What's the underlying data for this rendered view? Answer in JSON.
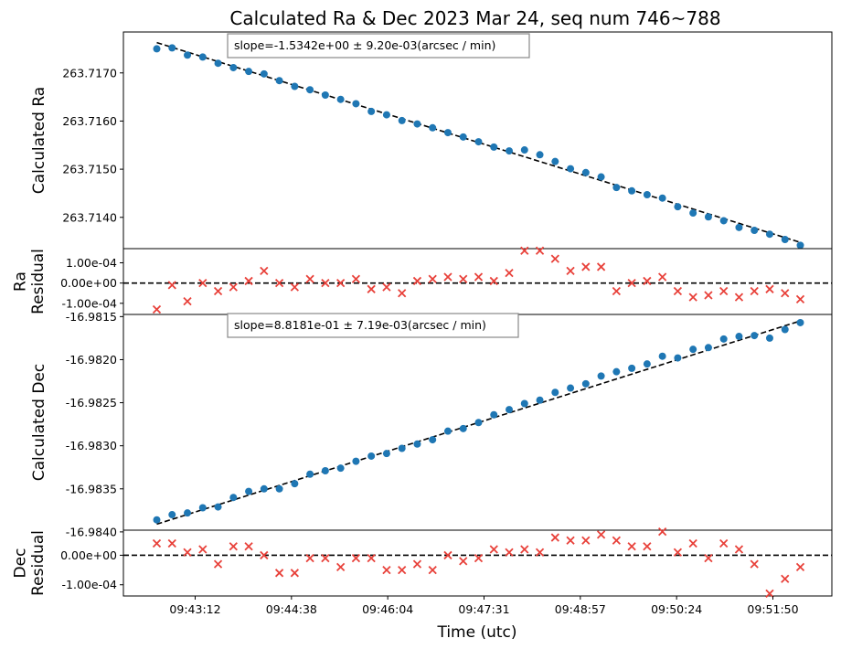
{
  "chart_data": {
    "type": "scatter",
    "title": "Calculated Ra & Dec 2023 Mar 24, seq num 746~788",
    "xlabel": "Time (utc)",
    "x_ticks": [
      "09:43:12",
      "09:44:38",
      "09:46:04",
      "09:47:31",
      "09:48:57",
      "09:50:24",
      "09:51:50"
    ],
    "panels": [
      {
        "id": "ra",
        "ylabel": "Calculated Ra",
        "ylim": [
          263.71335,
          263.71785
        ],
        "y_ticks": [
          263.714,
          263.715,
          263.716,
          263.717
        ],
        "y_tick_labels": [
          "263.7140",
          "263.7150",
          "263.7160",
          "263.7170"
        ],
        "annotation": "slope=-1.5342e+00 ± 9.20e-03(arcsec / min)",
        "fit": [
          263.71763,
          263.71348
        ],
        "series": [
          {
            "marker": "circle",
            "color": "#1f77b4",
            "values": [
              263.7175,
              263.71752,
              263.71737,
              263.71733,
              263.7172,
              263.71711,
              263.71703,
              263.71698,
              263.71684,
              263.71672,
              263.71665,
              263.71654,
              263.71645,
              263.71636,
              263.7162,
              263.71613,
              263.71601,
              263.71594,
              263.71586,
              263.71576,
              263.71567,
              263.71557,
              263.71546,
              263.71538,
              263.7154,
              263.7153,
              263.71516,
              263.71501,
              263.71493,
              263.71484,
              263.71462,
              263.71455,
              263.71447,
              263.7144,
              263.71422,
              263.71409,
              263.71401,
              263.71393,
              263.71379,
              263.71373,
              263.71365,
              263.71354,
              263.71342
            ]
          }
        ]
      },
      {
        "id": "ra-residual",
        "ylabel": "Ra Residual",
        "ylim": [
          -0.000155,
          0.00017
        ],
        "y_ticks": [
          -0.0001,
          0.0,
          0.0001
        ],
        "y_tick_labels": [
          "-1.00e-04",
          "0.00e+00",
          "1.00e-04"
        ],
        "zero_line": true,
        "series": [
          {
            "marker": "x",
            "color": "#e8413a",
            "values": [
              -0.00013,
              -1e-05,
              -9e-05,
              0.0,
              -4e-05,
              -2e-05,
              1e-05,
              6e-05,
              0.0,
              -2e-05,
              2e-05,
              0.0,
              0.0,
              2e-05,
              -3e-05,
              -2e-05,
              -5e-05,
              1e-05,
              2e-05,
              3e-05,
              2e-05,
              3e-05,
              1e-05,
              5e-05,
              0.00016,
              0.00016,
              0.00012,
              6e-05,
              8e-05,
              8e-05,
              -4e-05,
              0.0,
              1e-05,
              3e-05,
              -4e-05,
              -7e-05,
              -6e-05,
              -4e-05,
              -7e-05,
              -4e-05,
              -3e-05,
              -5e-05,
              -8e-05
            ]
          }
        ]
      },
      {
        "id": "dec",
        "ylabel": "Calculated Dec",
        "ylim": [
          -16.98398,
          -16.981475
        ],
        "y_ticks": [
          -16.984,
          -16.9835,
          -16.983,
          -16.9825,
          -16.982,
          -16.9815
        ],
        "y_tick_labels": [
          "-16.9840",
          "-16.9835",
          "-16.9830",
          "-16.9825",
          "-16.9820",
          "-16.9815"
        ],
        "annotation": "slope=8.8181e-01 ± 7.19e-03(arcsec / min)",
        "fit": [
          -16.98391,
          -16.98155
        ],
        "series": [
          {
            "marker": "circle",
            "color": "#1f77b4",
            "values": [
              -16.98386,
              -16.9838,
              -16.98378,
              -16.98372,
              -16.98371,
              -16.9836,
              -16.98353,
              -16.9835,
              -16.9835,
              -16.98344,
              -16.98333,
              -16.98329,
              -16.98326,
              -16.98318,
              -16.98312,
              -16.98309,
              -16.98303,
              -16.98298,
              -16.98293,
              -16.98283,
              -16.9828,
              -16.98273,
              -16.98264,
              -16.98258,
              -16.98251,
              -16.98247,
              -16.98238,
              -16.98233,
              -16.98228,
              -16.98219,
              -16.98214,
              -16.9821,
              -16.98205,
              -16.98196,
              -16.98198,
              -16.98188,
              -16.98186,
              -16.98176,
              -16.98173,
              -16.98172,
              -16.98175,
              -16.98165,
              -16.98157
            ]
          }
        ]
      },
      {
        "id": "dec-residual",
        "ylabel": "Dec Residual",
        "ylim": [
          -0.000138,
          8.5e-05
        ],
        "y_ticks": [
          -0.0001,
          0.0
        ],
        "y_tick_labels": [
          "-1.00e-04",
          "0.00e+00"
        ],
        "zero_line": true,
        "series": [
          {
            "marker": "x",
            "color": "#e8413a",
            "values": [
              4e-05,
              4e-05,
              1e-05,
              2e-05,
              -3e-05,
              3e-05,
              3e-05,
              0.0,
              -6e-05,
              -6e-05,
              -1e-05,
              -1e-05,
              -4e-05,
              -1e-05,
              -1e-05,
              -5e-05,
              -5e-05,
              -3e-05,
              -5e-05,
              0.0,
              -2e-05,
              -1e-05,
              2e-05,
              1e-05,
              2e-05,
              1e-05,
              6e-05,
              5e-05,
              5e-05,
              7e-05,
              5e-05,
              3e-05,
              3e-05,
              8e-05,
              1e-05,
              4e-05,
              -1e-05,
              4e-05,
              2e-05,
              -3e-05,
              -0.00013,
              -8e-05,
              -4e-05
            ]
          }
        ]
      }
    ]
  }
}
